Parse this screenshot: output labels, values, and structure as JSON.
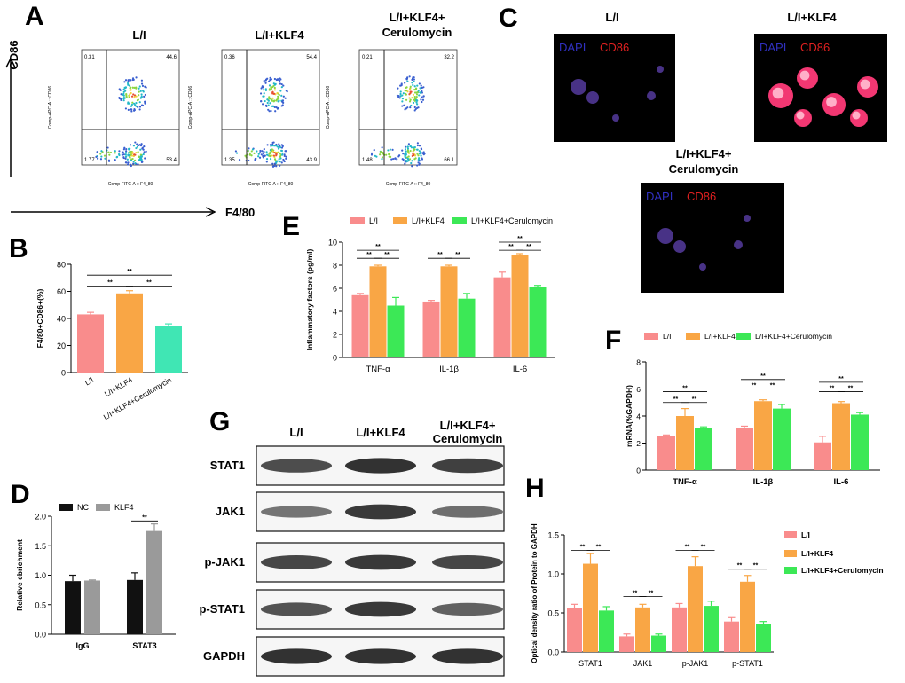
{
  "colors": {
    "pink": "#F98C8C",
    "orange": "#F9A645",
    "green": "#3CE856",
    "mint": "#40E6B4",
    "black": "#111111",
    "grey": "#9A9A9A",
    "red": "#E02020",
    "blue": "#3030C0"
  },
  "panels": {
    "A": "A",
    "B": "B",
    "C": "C",
    "D": "D",
    "E": "E",
    "F": "F",
    "G": "G",
    "H": "H"
  },
  "sig": "**",
  "flow": {
    "y_axis": "CD86",
    "x_axis": "F4/80",
    "inner_ylabel": "Comp-APC-A :: CD86",
    "inner_xlabel": "Comp-FITC-A :: F4_80",
    "plots": [
      {
        "title": "L/I",
        "title2": "",
        "q": [
          "0.31",
          "44.6",
          "1.77",
          "53.4"
        ]
      },
      {
        "title": "L/I+KLF4",
        "title2": "",
        "q": [
          "0.36",
          "54.4",
          "1.35",
          "43.9"
        ]
      },
      {
        "title": "L/I+KLF4+",
        "title2": "Cerulomycin",
        "q": [
          "0.21",
          "32.2",
          "1.48",
          "66.1"
        ]
      }
    ]
  },
  "micro": {
    "dapi": "DAPI",
    "cd86": "CD86",
    "titles": [
      "L/I",
      "L/I+KLF4",
      "L/I+KLF4+"
    ],
    "title3b": "Cerulomycin"
  },
  "western": {
    "headers": [
      "L/I",
      "L/I+KLF4",
      "L/I+KLF4+"
    ],
    "header3b": "Cerulomycin",
    "rows": [
      "STAT1",
      "JAK1",
      "p-JAK1",
      "p-STAT1",
      "GAPDH"
    ]
  },
  "chart_data": [
    {
      "panel": "B",
      "type": "bar",
      "categories": [
        "L/I",
        "L/I+KLF4",
        "L/I+KLF4+Cerulomycin"
      ],
      "values": [
        43,
        58.5,
        34.5
      ],
      "errors": [
        1.5,
        2,
        1.5
      ],
      "ylabel": "F4/80+CD86+(%)",
      "ylim": [
        0,
        80
      ],
      "yticks": [
        0,
        20,
        40,
        60,
        80
      ]
    },
    {
      "panel": "D",
      "type": "bar",
      "categories": [
        "IgG",
        "STAT3"
      ],
      "series": [
        {
          "name": "NC",
          "values": [
            0.9,
            0.92
          ],
          "errors": [
            0.1,
            0.12
          ]
        },
        {
          "name": "KLF4",
          "values": [
            0.91,
            1.75
          ],
          "errors": [
            0.01,
            0.12
          ]
        }
      ],
      "ylabel": "Relative ebrichment",
      "ylim": [
        0,
        2.0
      ],
      "yticks": [
        "0.0",
        "0.5",
        "1.0",
        "1.5",
        "2.0"
      ]
    },
    {
      "panel": "E",
      "type": "bar",
      "categories": [
        "TNF-α",
        "IL-1β",
        "IL-6"
      ],
      "series": [
        {
          "name": "L/I",
          "values": [
            5.4,
            4.85,
            6.95
          ],
          "errors": [
            0.15,
            0.1,
            0.45
          ]
        },
        {
          "name": "L/I+KLF4",
          "values": [
            7.9,
            7.9,
            8.9
          ],
          "errors": [
            0.1,
            0.1,
            0.1
          ]
        },
        {
          "name": "L/I+KLF4+Cerulomycin",
          "values": [
            4.5,
            5.1,
            6.1
          ],
          "errors": [
            0.7,
            0.45,
            0.15
          ]
        }
      ],
      "ylabel": "Inflammatory factors (pg/ml)",
      "ylim": [
        0,
        10
      ],
      "yticks": [
        0,
        2,
        4,
        6,
        8,
        10
      ]
    },
    {
      "panel": "F",
      "type": "bar",
      "categories": [
        "TNF-α",
        "IL-1β",
        "IL-6"
      ],
      "series": [
        {
          "name": "L/I",
          "values": [
            2.5,
            3.1,
            2.05
          ],
          "errors": [
            0.1,
            0.15,
            0.45
          ]
        },
        {
          "name": "L/I+KLF4",
          "values": [
            4.0,
            5.1,
            4.95
          ],
          "errors": [
            0.55,
            0.1,
            0.12
          ]
        },
        {
          "name": "L/I+KLF4+Cerulomycin",
          "values": [
            3.1,
            4.55,
            4.1
          ],
          "errors": [
            0.1,
            0.3,
            0.15
          ]
        }
      ],
      "ylabel": "mRNA(%GAPDH)",
      "ylim": [
        0,
        8
      ],
      "yticks": [
        0,
        2,
        4,
        6,
        8
      ]
    },
    {
      "panel": "H",
      "type": "bar",
      "categories": [
        "STAT1",
        "JAK1",
        "p-JAK1",
        "p-STAT1"
      ],
      "series": [
        {
          "name": "L/I",
          "values": [
            0.56,
            0.2,
            0.57,
            0.39
          ],
          "errors": [
            0.05,
            0.03,
            0.05,
            0.05
          ]
        },
        {
          "name": "L/I+KLF4",
          "values": [
            1.13,
            0.57,
            1.1,
            0.9
          ],
          "errors": [
            0.13,
            0.04,
            0.12,
            0.08
          ]
        },
        {
          "name": "L/I+KLF4+Cerulomycin",
          "values": [
            0.53,
            0.21,
            0.59,
            0.36
          ],
          "errors": [
            0.05,
            0.02,
            0.06,
            0.03
          ]
        }
      ],
      "ylabel": "Optical density ratio of Protein to GAPDH",
      "ylim": [
        0,
        1.5
      ],
      "yticks": [
        "0.0",
        "0.5",
        "1.0",
        "1.5"
      ]
    }
  ]
}
